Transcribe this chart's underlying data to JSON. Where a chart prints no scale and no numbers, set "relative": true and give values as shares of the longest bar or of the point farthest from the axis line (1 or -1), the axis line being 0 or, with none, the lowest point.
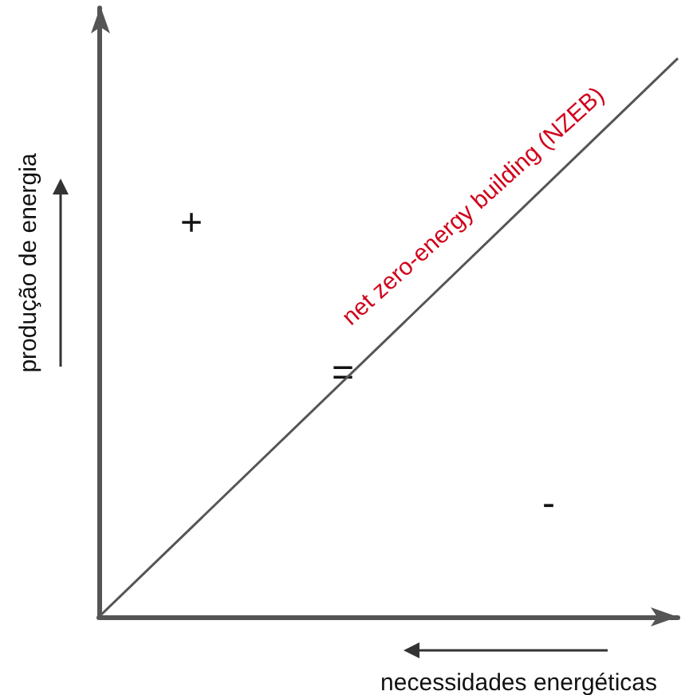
{
  "chart_data": {
    "type": "line",
    "relative": true,
    "xlabel": "necessidades energéticas",
    "ylabel": "produção de energia",
    "categories": [
      null,
      null
    ],
    "series": [
      {
        "name": "net zero-energy building (NZEB)",
        "color": "#555555",
        "values": [
          0,
          1
        ]
      }
    ],
    "annotations": [
      "+",
      "=",
      "-"
    ],
    "marker": "none",
    "line_style": "solid"
  }
}
